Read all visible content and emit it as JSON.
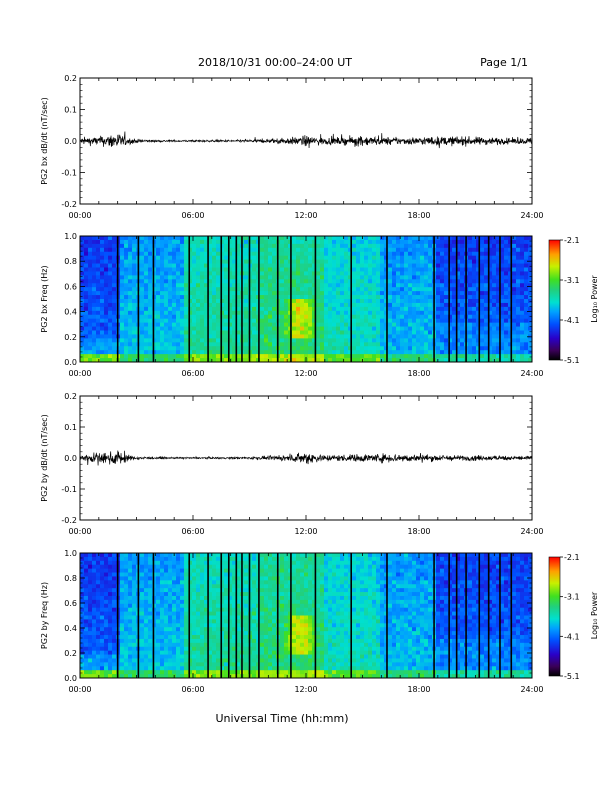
{
  "header": {
    "title": "2018/10/31   00:00–24:00 UT",
    "page": "Page 1/1"
  },
  "chart_data": [
    {
      "type": "line",
      "panel": "bx_timeseries",
      "ylabel": "PG2 bx dB/dt (nT/sec)",
      "xlim": [
        0,
        24
      ],
      "ylim": [
        -0.2,
        0.2
      ],
      "xticks": [
        "00:00",
        "06:00",
        "12:00",
        "18:00",
        "24:00"
      ],
      "yticks": [
        "0.2",
        "0.1",
        "0.0",
        "-0.1",
        "-0.2"
      ],
      "envelope": {
        "x": [
          0,
          0.5,
          1.0,
          1.5,
          1.8,
          2.2,
          2.6,
          3.0,
          4.0,
          5.0,
          6.0,
          7.0,
          8.0,
          9.0,
          10.0,
          11.0,
          11.5,
          12.0,
          12.5,
          13.0,
          14.0,
          14.5,
          15.0,
          15.5,
          16.0,
          17.0,
          18.0,
          19.0,
          20.0,
          21.0,
          22.0,
          23.0,
          24.0
        ],
        "y": [
          0.02,
          0.022,
          0.025,
          0.032,
          0.055,
          0.035,
          0.018,
          0.01,
          0.006,
          0.005,
          0.005,
          0.005,
          0.006,
          0.007,
          0.012,
          0.018,
          0.022,
          0.03,
          0.022,
          0.02,
          0.02,
          0.025,
          0.028,
          0.025,
          0.022,
          0.02,
          0.022,
          0.024,
          0.025,
          0.022,
          0.02,
          0.015,
          0.02
        ]
      }
    },
    {
      "type": "heatmap",
      "panel": "bx_spectrogram",
      "ylabel": "PG2 bx Freq (Hz)",
      "xlim": [
        0,
        24
      ],
      "ylim": [
        0,
        1.0
      ],
      "xticks": [
        "00:00",
        "06:00",
        "12:00",
        "18:00",
        "24:00"
      ],
      "yticks": [
        "1.0",
        "0.8",
        "0.6",
        "0.4",
        "0.2",
        "0.0"
      ],
      "colorbar": {
        "label": "Log₁₀ Power",
        "ticks": [
          "-2.1",
          "-3.1",
          "-4.1",
          "-5.1"
        ],
        "range": [
          -5.1,
          -2.1
        ]
      },
      "gap_lines_hours": [
        2.0,
        3.1,
        3.9,
        5.8,
        6.8,
        7.5,
        7.9,
        8.3,
        8.6,
        9.0,
        9.5,
        10.5,
        11.2,
        12.5,
        14.4,
        16.3,
        18.8,
        19.6,
        20.0,
        20.5,
        21.2,
        21.7,
        22.3,
        22.9
      ]
    },
    {
      "type": "line",
      "panel": "by_timeseries",
      "ylabel": "PG2 by dB/dt (nT/sec)",
      "xlim": [
        0,
        24
      ],
      "ylim": [
        -0.2,
        0.2
      ],
      "xticks": [
        "00:00",
        "06:00",
        "12:00",
        "18:00",
        "24:00"
      ],
      "yticks": [
        "0.2",
        "0.1",
        "0.0",
        "-0.1",
        "-0.2"
      ],
      "envelope": {
        "x": [
          0,
          0.5,
          1.0,
          1.5,
          2.0,
          2.3,
          2.6,
          3.0,
          4.0,
          5.0,
          6.0,
          7.0,
          8.0,
          9.0,
          10.0,
          11.0,
          11.5,
          12.0,
          12.5,
          13.0,
          14.0,
          15.0,
          16.0,
          16.5,
          17.0,
          18.0,
          19.0,
          20.0,
          21.0,
          22.0,
          23.0,
          24.0
        ],
        "y": [
          0.02,
          0.028,
          0.03,
          0.028,
          0.045,
          0.035,
          0.015,
          0.008,
          0.005,
          0.004,
          0.004,
          0.004,
          0.005,
          0.006,
          0.01,
          0.015,
          0.02,
          0.04,
          0.025,
          0.018,
          0.018,
          0.022,
          0.024,
          0.026,
          0.022,
          0.02,
          0.018,
          0.015,
          0.015,
          0.013,
          0.012,
          0.012
        ]
      }
    },
    {
      "type": "heatmap",
      "panel": "by_spectrogram",
      "ylabel": "PG2 by Freq (Hz)",
      "xlim": [
        0,
        24
      ],
      "ylim": [
        0,
        1.0
      ],
      "xticks": [
        "00:00",
        "06:00",
        "12:00",
        "18:00",
        "24:00"
      ],
      "yticks": [
        "1.0",
        "0.8",
        "0.6",
        "0.4",
        "0.2",
        "0.0"
      ],
      "colorbar": {
        "label": "Log₁₀ Power",
        "ticks": [
          "-2.1",
          "-3.1",
          "-4.1",
          "-5.1"
        ],
        "range": [
          -5.1,
          -2.1
        ]
      },
      "gap_lines_hours": [
        2.0,
        3.1,
        3.9,
        5.8,
        6.8,
        7.5,
        7.9,
        8.3,
        8.6,
        9.0,
        9.5,
        10.5,
        11.2,
        12.5,
        14.4,
        16.3,
        18.8,
        19.6,
        20.0,
        20.5,
        21.2,
        21.7,
        22.3,
        22.9
      ]
    }
  ],
  "xlabel": "Universal Time (hh:mm)"
}
